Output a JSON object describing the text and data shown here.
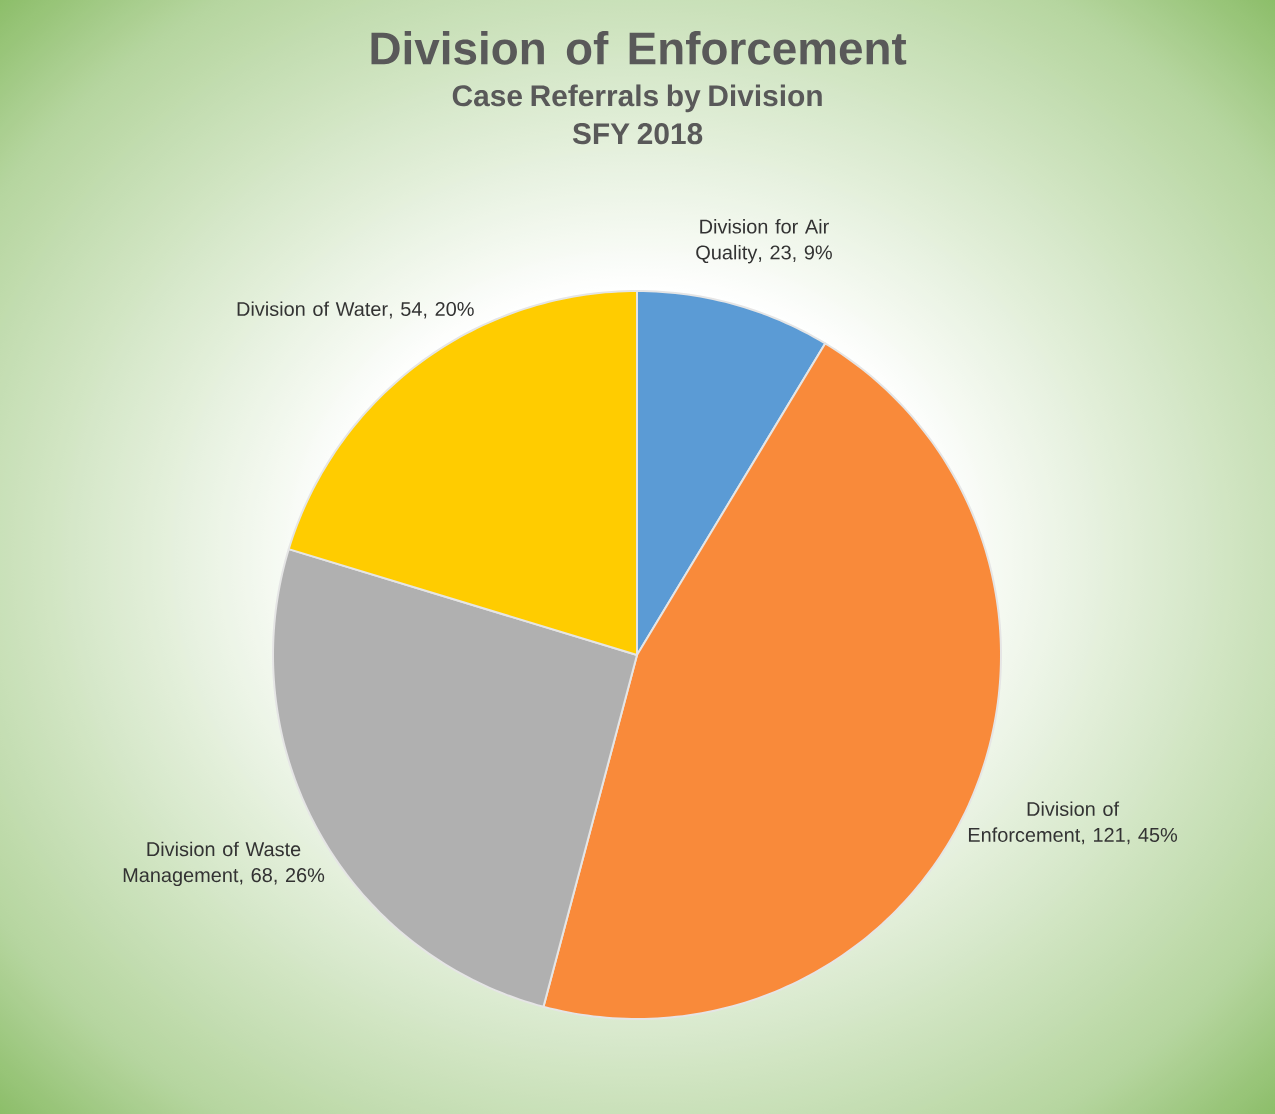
{
  "chart_data": {
    "type": "pie",
    "title": "Division of Enforcement",
    "subtitle": "Case Referrals by Division\nSFY 2018",
    "categories": [
      "Division for Air Quality",
      "Division of Enforcement",
      "Division of Waste Management",
      "Division of Water"
    ],
    "values": [
      23,
      121,
      68,
      54
    ],
    "value_labels": [
      ", 23, 9%",
      ", 121, 45%",
      ", 68, 26%",
      ", 54, 20%"
    ],
    "colors": [
      "#5b9bd5",
      "#f98a3a",
      "#b0b0b0",
      "#ffcc00"
    ]
  }
}
